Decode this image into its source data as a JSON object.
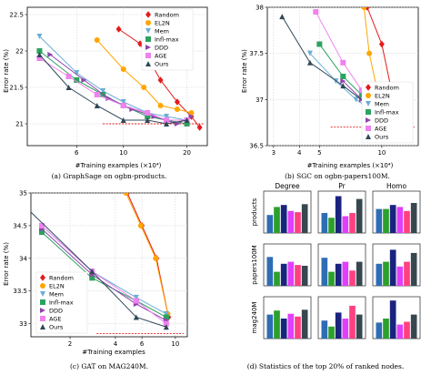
{
  "legend_labels": [
    "Random",
    "EL2N",
    "Mem",
    "Infl-max",
    "DDD",
    "AGE",
    "Ours"
  ],
  "colors": {
    "Random": "#e41a1c",
    "EL2N": "#ffa500",
    "Mem": "#6baed6",
    "Infl-max": "#2ca25f",
    "DDD": "#8e44ad",
    "AGE": "#ee82ee",
    "Ours": "#2f4858"
  },
  "bars_colors": [
    "#2e6db4",
    "#2ca02c",
    "#1a237e",
    "#e040fb",
    "#ff4081",
    "#37474f"
  ],
  "chart_data": [
    {
      "id": "a",
      "type": "line",
      "caption": "(a) GraphSage on ogbn-products.",
      "xlabel": "#Training examples (×10⁴)",
      "ylabel": "Error rate (%)",
      "xscale": "log",
      "xlim": [
        3.5,
        25
      ],
      "ylim": [
        20.7,
        22.6
      ],
      "xticks": [
        6,
        10,
        20
      ],
      "xtick_labels": [
        "6",
        "10",
        "20"
      ],
      "yticks": [
        21,
        21.5,
        22,
        22.5
      ],
      "ytick_labels": [
        "21",
        "21.5",
        "22",
        "22.5"
      ],
      "legend_position": "top-right",
      "series": [
        {
          "name": "Random",
          "x": [
            9.5,
            12,
            15,
            18,
            21,
            23
          ],
          "y": [
            22.3,
            22.1,
            21.6,
            21.3,
            21.1,
            20.95
          ]
        },
        {
          "name": "EL2N",
          "x": [
            7.5,
            10,
            12.5,
            15,
            18,
            21
          ],
          "y": [
            22.15,
            21.75,
            21.5,
            21.25,
            21.2,
            21.15
          ]
        },
        {
          "name": "Mem",
          "x": [
            4,
            6,
            8,
            10,
            13,
            16,
            20
          ],
          "y": [
            22.2,
            21.7,
            21.45,
            21.3,
            21.15,
            21.1,
            21.05
          ]
        },
        {
          "name": "Infl-max",
          "x": [
            4,
            6,
            8,
            10,
            13,
            16,
            20
          ],
          "y": [
            22.0,
            21.6,
            21.4,
            21.25,
            21.1,
            21.05,
            21.0
          ]
        },
        {
          "name": "DDD",
          "x": [
            4.5,
            6.5,
            8.5,
            11,
            14,
            18,
            21
          ],
          "y": [
            21.95,
            21.6,
            21.35,
            21.2,
            21.1,
            21.0,
            21.1
          ]
        },
        {
          "name": "AGE",
          "x": [
            4,
            5.5,
            7.5,
            10,
            13,
            16,
            20
          ],
          "y": [
            21.9,
            21.65,
            21.4,
            21.25,
            21.15,
            21.05,
            21.05
          ]
        },
        {
          "name": "Ours",
          "x": [
            4,
            5.5,
            7.5,
            10,
            13,
            16,
            20
          ],
          "y": [
            21.95,
            21.5,
            21.25,
            21.05,
            21.05,
            21.0,
            21.05
          ]
        }
      ],
      "reference_line": 21.0
    },
    {
      "id": "b",
      "type": "line",
      "caption": "(b) SGC on ogbn-papers100M.",
      "xlabel": "#Training examples (×10⁴)",
      "ylabel": "Error rate (%)",
      "xscale": "log",
      "xlim": [
        2.8,
        15
      ],
      "ylim": [
        36.5,
        38
      ],
      "xticks": [
        3,
        4,
        5,
        10
      ],
      "xtick_labels": [
        "3",
        "4",
        "5",
        "10"
      ],
      "yticks": [
        36.5,
        37,
        37.5,
        38
      ],
      "ytick_labels": [
        "36.5",
        "37",
        "37.5",
        "38"
      ],
      "legend_position": "center-right",
      "series": [
        {
          "name": "Random",
          "x": [
            8.5,
            10,
            11.5,
            13
          ],
          "y": [
            38.0,
            37.6,
            36.95,
            36.72
          ]
        },
        {
          "name": "EL2N",
          "x": [
            8.2,
            8.7,
            9.5,
            10.5
          ],
          "y": [
            38.0,
            37.5,
            37.1,
            36.9
          ]
        },
        {
          "name": "Mem",
          "x": [
            4.5,
            6,
            7.5,
            9.5,
            11.5
          ],
          "y": [
            37.5,
            37.2,
            37.0,
            36.85,
            36.75
          ]
        },
        {
          "name": "Infl-max",
          "x": [
            5.0,
            6.5,
            8,
            10,
            12
          ],
          "y": [
            37.6,
            37.25,
            37.05,
            36.9,
            36.8
          ]
        },
        {
          "name": "DDD",
          "x": [
            6.5,
            8,
            9.5,
            11.5
          ],
          "y": [
            37.2,
            37.0,
            36.85,
            36.75
          ]
        },
        {
          "name": "AGE",
          "x": [
            4.8,
            6.5,
            8,
            10
          ],
          "y": [
            37.95,
            37.4,
            37.1,
            36.95
          ]
        },
        {
          "name": "Ours",
          "x": [
            3.3,
            4.5,
            6.5,
            8.5,
            11.5
          ],
          "y": [
            37.9,
            37.4,
            37.15,
            36.95,
            36.8
          ]
        }
      ],
      "reference_line": 36.7
    },
    {
      "id": "c",
      "type": "line",
      "caption": "(c) GAT on MAG240M.",
      "xlabel": "#Training examples",
      "ylabel": "Error rate (%)",
      "xscale": "log",
      "xlim": [
        1.1,
        12
      ],
      "ylim": [
        32.8,
        35.0
      ],
      "xticks": [
        2,
        4,
        6,
        10
      ],
      "xtick_labels": [
        "2",
        "4",
        "6",
        "10"
      ],
      "yticks": [
        33,
        33.5,
        34,
        34.5,
        35
      ],
      "ytick_labels": [
        "33",
        "33.5",
        "34",
        "34.5",
        "35"
      ],
      "legend_position": "bottom-left",
      "series": [
        {
          "name": "Random",
          "x": [
            4.8,
            6,
            7.5,
            9
          ],
          "y": [
            35.0,
            34.5,
            34.0,
            33.1
          ]
        },
        {
          "name": "EL2N",
          "x": [
            4.7,
            5.9,
            7.4,
            8.9
          ],
          "y": [
            35.0,
            34.5,
            34.0,
            33.15
          ]
        },
        {
          "name": "Mem",
          "x": [
            1.3,
            2.8,
            5.5,
            8.7
          ],
          "y": [
            34.5,
            33.8,
            33.4,
            33.15
          ]
        },
        {
          "name": "Infl-max",
          "x": [
            1.3,
            2.8,
            5.5,
            8.7
          ],
          "y": [
            34.4,
            33.7,
            33.35,
            33.1
          ]
        },
        {
          "name": "DDD",
          "x": [
            1.3,
            2.8,
            5.5,
            8.7
          ],
          "y": [
            34.45,
            33.75,
            33.3,
            33.05
          ]
        },
        {
          "name": "AGE",
          "x": [
            1.3,
            2.8,
            5.5,
            8.7
          ],
          "y": [
            34.5,
            33.8,
            33.35,
            33.0
          ]
        },
        {
          "name": "Ours",
          "x": [
            1.0,
            2.8,
            5.5,
            8.7
          ],
          "y": [
            34.8,
            33.8,
            33.1,
            32.95
          ]
        }
      ],
      "reference_line": 32.85
    },
    {
      "id": "d",
      "type": "bar",
      "caption": "(d) Statistics of the top 20% of ranked nodes.",
      "col_labels": [
        "Degree",
        "Pr",
        "Homo"
      ],
      "row_labels": [
        "products",
        "papers100M",
        "mag240M"
      ],
      "values": [
        [
          [
            0.45,
            0.65,
            0.7,
            0.55,
            0.52,
            0.72
          ],
          [
            0.5,
            0.38,
            0.92,
            0.42,
            0.5,
            0.85
          ],
          [
            0.6,
            0.6,
            0.7,
            0.65,
            0.55,
            0.75
          ]
        ],
        [
          [
            0.72,
            0.35,
            0.55,
            0.6,
            0.52,
            0.5
          ],
          [
            0.7,
            0.35,
            0.55,
            0.6,
            0.38,
            0.6
          ],
          [
            0.55,
            0.6,
            0.9,
            0.48,
            0.6,
            0.82
          ]
        ],
        [
          [
            0.6,
            0.7,
            0.5,
            0.62,
            0.55,
            0.72
          ],
          [
            0.45,
            0.3,
            0.65,
            0.5,
            0.82,
            0.6
          ],
          [
            0.4,
            0.5,
            0.95,
            0.35,
            0.42,
            0.6
          ]
        ]
      ],
      "ylim": [
        0,
        1
      ]
    }
  ]
}
